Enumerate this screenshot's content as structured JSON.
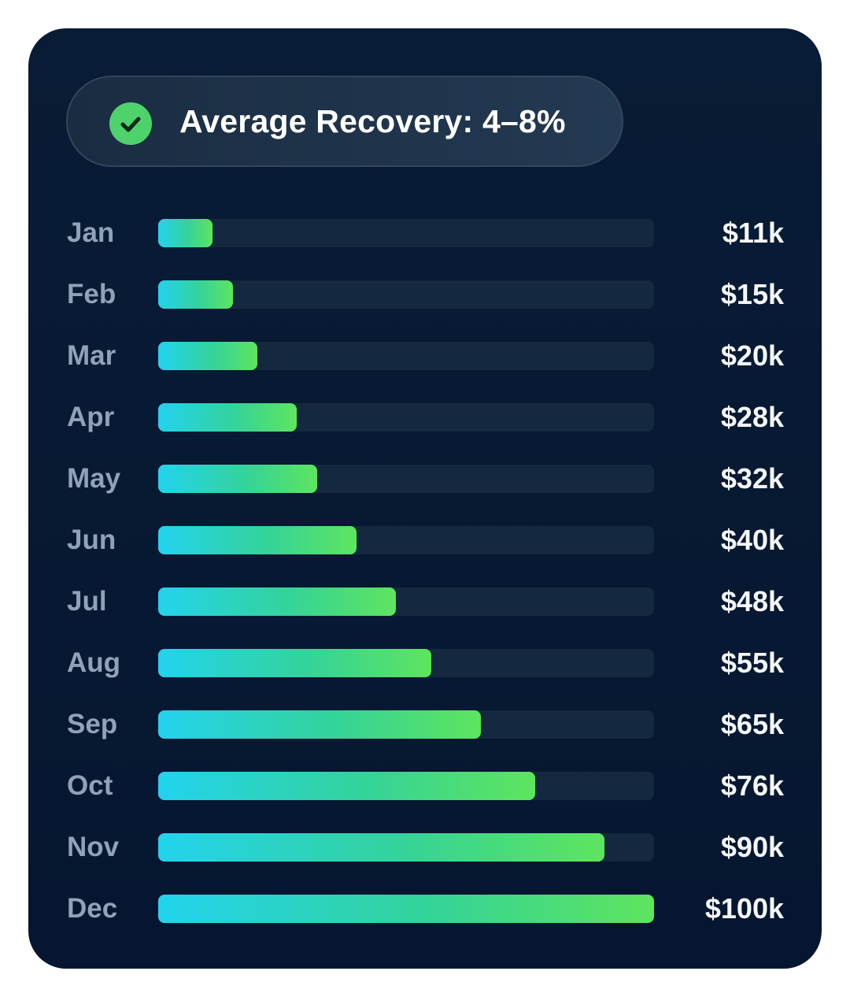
{
  "badge": {
    "icon": "check-circle-icon",
    "text": "Average Recovery: 4–8%",
    "icon_color": "#4ed36c"
  },
  "colors": {
    "card_background": "#091c35",
    "track": "#14283f",
    "bar_gradient_start": "#22d3ee",
    "bar_gradient_end": "#5ee45e",
    "month_label": "#8ea2b8",
    "value_label": "#f4f7fb"
  },
  "chart_data": {
    "type": "bar",
    "orientation": "horizontal",
    "categories": [
      "Jan",
      "Feb",
      "Mar",
      "Apr",
      "May",
      "Jun",
      "Jul",
      "Aug",
      "Sep",
      "Oct",
      "Nov",
      "Dec"
    ],
    "values": [
      11,
      15,
      20,
      28,
      32,
      40,
      48,
      55,
      65,
      76,
      90,
      100
    ],
    "value_labels": [
      "$11k",
      "$15k",
      "$20k",
      "$28k",
      "$32k",
      "$40k",
      "$48k",
      "$55k",
      "$65k",
      "$76k",
      "$90k",
      "$100k"
    ],
    "xlim": [
      0,
      100
    ],
    "grid": false,
    "legend": "none"
  }
}
